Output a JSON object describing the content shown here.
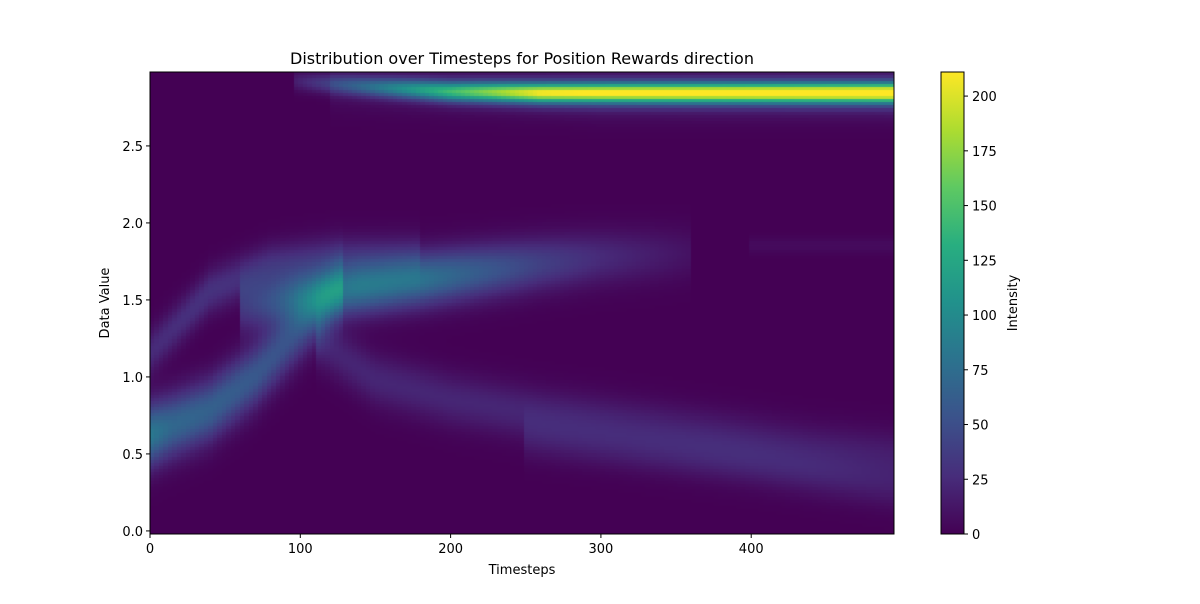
{
  "chart_data": {
    "type": "heatmap",
    "title": "Distribution over Timesteps for Position Rewards direction",
    "xlabel": "Timesteps",
    "ylabel": "Data Value",
    "xlim": [
      0,
      495
    ],
    "ylim": [
      -0.02,
      2.98
    ],
    "xticks": [
      0,
      100,
      200,
      300,
      400
    ],
    "yticks": [
      0.0,
      0.5,
      1.0,
      1.5,
      2.0,
      2.5
    ],
    "colorbar": {
      "label": "Intensity",
      "min": 0,
      "max": 211,
      "ticks": [
        0,
        25,
        50,
        75,
        100,
        125,
        150,
        175,
        200
      ],
      "colormap": "viridis"
    },
    "bands": [
      {
        "points": [
          [
            0,
            0.62
          ],
          [
            15,
            0.68
          ],
          [
            40,
            0.78
          ],
          [
            70,
            1.0
          ],
          [
            95,
            1.25
          ],
          [
            115,
            1.45
          ],
          [
            130,
            1.6
          ]
        ],
        "width": 0.14,
        "peak": [
          85,
          70,
          65,
          58,
          50,
          45,
          35
        ]
      },
      {
        "points": [
          [
            60,
            1.45
          ],
          [
            100,
            1.52
          ],
          [
            140,
            1.58
          ],
          [
            180,
            1.63
          ],
          [
            220,
            1.68
          ],
          [
            260,
            1.73
          ],
          [
            300,
            1.77
          ],
          [
            360,
            1.8
          ]
        ],
        "width": 0.12,
        "peak": [
          30,
          70,
          85,
          80,
          60,
          40,
          25,
          10
        ]
      },
      {
        "points": [
          [
            0,
            1.15
          ],
          [
            40,
            1.55
          ],
          [
            80,
            1.72
          ],
          [
            120,
            1.78
          ],
          [
            180,
            1.8
          ]
        ],
        "width": 0.1,
        "peak": [
          25,
          30,
          28,
          22,
          12
        ]
      },
      {
        "points": [
          [
            110,
            1.25
          ],
          [
            150,
            0.98
          ],
          [
            200,
            0.85
          ],
          [
            260,
            0.75
          ],
          [
            320,
            0.68
          ],
          [
            380,
            0.6
          ],
          [
            440,
            0.52
          ],
          [
            495,
            0.48
          ]
        ],
        "width": 0.12,
        "peak": [
          20,
          22,
          22,
          22,
          20,
          20,
          18,
          16
        ]
      },
      {
        "points": [
          [
            250,
            0.6
          ],
          [
            320,
            0.52
          ],
          [
            400,
            0.42
          ],
          [
            460,
            0.33
          ],
          [
            495,
            0.28
          ]
        ],
        "width": 0.1,
        "peak": [
          12,
          14,
          15,
          15,
          14
        ]
      },
      {
        "points": [
          [
            400,
            1.85
          ],
          [
            495,
            1.85
          ]
        ],
        "width": 0.04,
        "peak": [
          6,
          6
        ]
      },
      {
        "points": [
          [
            95,
            2.92
          ],
          [
            150,
            2.88
          ],
          [
            200,
            2.85
          ],
          [
            260,
            2.84
          ],
          [
            495,
            2.84
          ]
        ],
        "width": 0.045,
        "peak": [
          15,
          70,
          130,
          190,
          205
        ]
      },
      {
        "points": [
          [
            120,
            2.88
          ],
          [
            300,
            2.84
          ],
          [
            495,
            2.84
          ]
        ],
        "width": 0.1,
        "peak": [
          8,
          25,
          30
        ]
      }
    ],
    "grid": false,
    "legend": "none"
  }
}
